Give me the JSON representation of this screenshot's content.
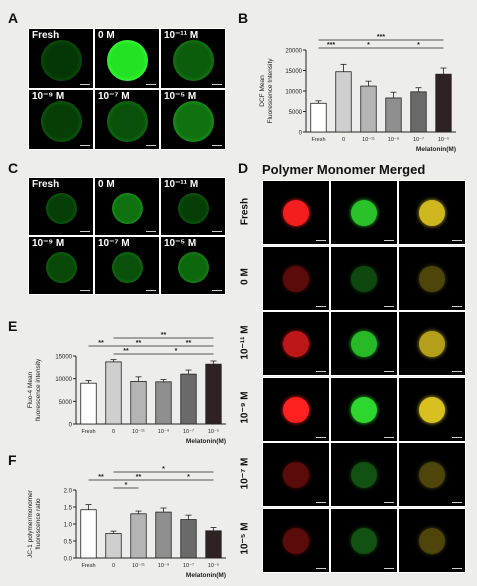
{
  "panel_letters": {
    "A": "A",
    "B": "B",
    "C": "C",
    "D": "D",
    "E": "E",
    "F": "F"
  },
  "panel_A": {
    "cells": [
      {
        "label": "Fresh",
        "intensity": 0.25
      },
      {
        "label": "0 M",
        "intensity": 0.95
      },
      {
        "label": "10⁻¹¹ M",
        "intensity": 0.45
      },
      {
        "label": "10⁻⁹ M",
        "intensity": 0.3
      },
      {
        "label": "10⁻⁷ M",
        "intensity": 0.4
      },
      {
        "label": "10⁻⁵ M",
        "intensity": 0.55
      }
    ]
  },
  "panel_C": {
    "cells": [
      {
        "label": "Fresh",
        "intensity": 0.3
      },
      {
        "label": "0 M",
        "intensity": 0.55
      },
      {
        "label": "10⁻¹¹ M",
        "intensity": 0.3
      },
      {
        "label": "10⁻⁹ M",
        "intensity": 0.35
      },
      {
        "label": "10⁻⁷ M",
        "intensity": 0.4
      },
      {
        "label": "10⁻⁵ M",
        "intensity": 0.5
      }
    ]
  },
  "panel_D": {
    "title": "Polymer Monomer Merged",
    "rows": [
      "Fresh",
      "0 M",
      "10⁻¹¹ M",
      "10⁻⁹ M",
      "10⁻⁷ M",
      "10⁻⁵ M"
    ],
    "polymer_intensity": [
      0.95,
      0.25,
      0.7,
      1.0,
      0.25,
      0.25
    ],
    "monomer_intensity": [
      0.85,
      0.2,
      0.8,
      0.95,
      0.25,
      0.25
    ],
    "polymer_color": "#ff2020",
    "monomer_color": "#30e030",
    "merged_color": "#d8c020"
  },
  "chart_data": [
    {
      "panel": "B",
      "type": "bar",
      "categories": [
        "Fresh",
        "0",
        "10⁻¹¹",
        "10⁻⁹",
        "10⁻⁷",
        "10⁻⁵"
      ],
      "values": [
        7000,
        14700,
        11200,
        8300,
        9800,
        14100
      ],
      "errors": [
        600,
        1800,
        1200,
        1400,
        1000,
        1500
      ],
      "bar_colors": [
        "#ffffff",
        "#cfcfcf",
        "#b4b4b4",
        "#8f8f8f",
        "#6a6a6a",
        "#2e2222"
      ],
      "ylabel": "DCF Mean\nFluorescence Intensity",
      "xlabel": "Melatonin(M)",
      "ylim": [
        0,
        20000
      ],
      "yticks": [
        "0",
        "5000",
        "10000",
        "15000",
        "20000"
      ],
      "significance": [
        {
          "from": 0,
          "to": 1,
          "label": "***",
          "level": 1
        },
        {
          "from": 1,
          "to": 3,
          "label": "*",
          "level": 1
        },
        {
          "from": 3,
          "to": 5,
          "label": "*",
          "level": 1
        },
        {
          "from": 0,
          "to": 5,
          "label": "***",
          "level": 2
        }
      ]
    },
    {
      "panel": "E",
      "type": "bar",
      "categories": [
        "Fresh",
        "0",
        "10⁻¹¹",
        "10⁻⁹",
        "10⁻⁷",
        "10⁻⁵"
      ],
      "values": [
        9000,
        13700,
        9400,
        9300,
        11000,
        13200
      ],
      "errors": [
        600,
        500,
        1000,
        500,
        900,
        700
      ],
      "bar_colors": [
        "#ffffff",
        "#cfcfcf",
        "#b4b4b4",
        "#8f8f8f",
        "#6a6a6a",
        "#2e2222"
      ],
      "ylabel": "Fluo-4 Mean\nfluorescence intensity",
      "xlabel": "Melatonin(M)",
      "ylim": [
        0,
        15000
      ],
      "yticks": [
        "0",
        "5000",
        "10000",
        "15000"
      ],
      "significance": [
        {
          "from": 0,
          "to": 1,
          "label": "**",
          "level": 2
        },
        {
          "from": 1,
          "to": 3,
          "label": "**",
          "level": 2
        },
        {
          "from": 1,
          "to": 2,
          "label": "**",
          "level": 1
        },
        {
          "from": 3,
          "to": 5,
          "label": "**",
          "level": 2
        },
        {
          "from": 1,
          "to": 5,
          "label": "**",
          "level": 3
        },
        {
          "from": 2,
          "to": 5,
          "label": "*",
          "level": 1
        }
      ]
    },
    {
      "panel": "F",
      "type": "bar",
      "categories": [
        "Fresh",
        "0",
        "10⁻¹¹",
        "10⁻⁹",
        "10⁻⁷",
        "10⁻⁵"
      ],
      "values": [
        1.42,
        0.72,
        1.3,
        1.35,
        1.13,
        0.8
      ],
      "errors": [
        0.15,
        0.07,
        0.08,
        0.12,
        0.13,
        0.1
      ],
      "bar_colors": [
        "#ffffff",
        "#cfcfcf",
        "#b4b4b4",
        "#8f8f8f",
        "#6a6a6a",
        "#2e2222"
      ],
      "ylabel": "JC-1 polymer/monomer\nfluorescence ratio",
      "xlabel": "Melatonin(M)",
      "ylim": [
        0,
        2.0
      ],
      "yticks": [
        "0.0",
        "0.5",
        "1.0",
        "1.5",
        "2.0"
      ],
      "significance": [
        {
          "from": 0,
          "to": 1,
          "label": "**",
          "level": 2
        },
        {
          "from": 1,
          "to": 2,
          "label": "*",
          "level": 1
        },
        {
          "from": 1,
          "to": 3,
          "label": "**",
          "level": 2
        },
        {
          "from": 3,
          "to": 5,
          "label": "*",
          "level": 2
        },
        {
          "from": 1,
          "to": 5,
          "label": "*",
          "level": 3
        }
      ]
    }
  ]
}
